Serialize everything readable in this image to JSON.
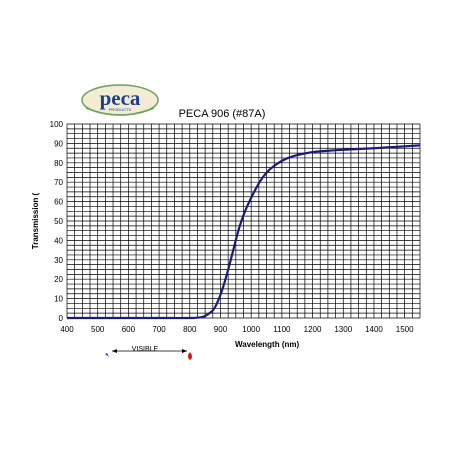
{
  "logo": {
    "name": "peca",
    "sub": "PRODUCTS"
  },
  "visible_label": "VISIBLE",
  "colors": {
    "curve": "#1a1a7a",
    "grid": "#000000",
    "blue_marker": "#2b3fbf",
    "red_marker": "#e01010"
  },
  "chart_data": {
    "type": "line",
    "title": "PECA 906 (#87A)",
    "xlabel": "Wavelength (nm)",
    "ylabel": "Transmission (",
    "xlim": [
      400,
      1550
    ],
    "ylim": [
      0,
      100
    ],
    "x_ticks": [
      400,
      500,
      600,
      700,
      800,
      900,
      1000,
      1100,
      1200,
      1300,
      1400,
      1500
    ],
    "y_ticks": [
      0,
      10,
      20,
      30,
      40,
      50,
      60,
      70,
      80,
      90,
      100
    ],
    "grid": true,
    "series": [
      {
        "x": [
          400,
          500,
          600,
          700,
          800,
          840,
          860,
          880,
          900,
          920,
          940,
          960,
          980,
          1000,
          1020,
          1040,
          1060,
          1080,
          1100,
          1120,
          1150,
          1200,
          1250,
          1300,
          1350,
          1400,
          1450,
          1500,
          1550
        ],
        "y": [
          0,
          0,
          0,
          0,
          0,
          0.5,
          2,
          5,
          12,
          22,
          34,
          46,
          55,
          62,
          68,
          73,
          76.5,
          79,
          81,
          82.5,
          84,
          85.5,
          86.2,
          86.7,
          87.1,
          87.5,
          88,
          88.5,
          89
        ]
      }
    ]
  }
}
